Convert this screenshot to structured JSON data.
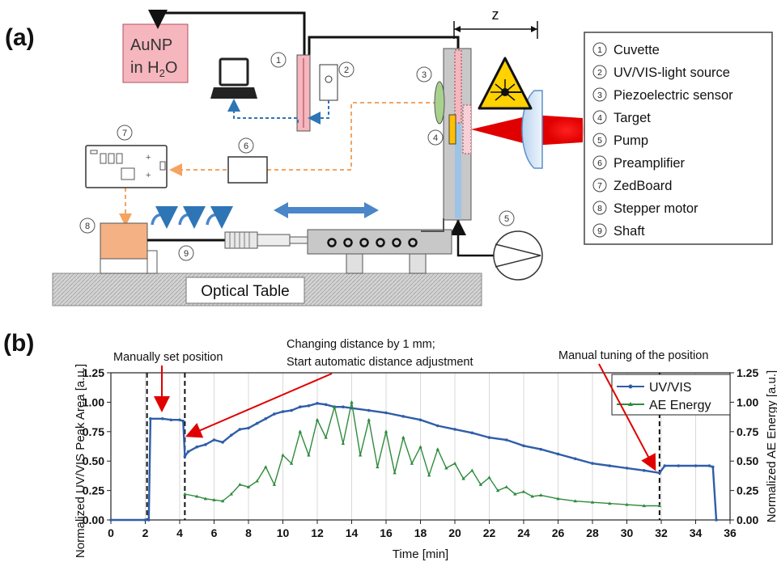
{
  "panel_a": {
    "label": "(a)",
    "reservoir": {
      "line1": "AuNP",
      "line2_prefix": "in H",
      "line2_sub": "2",
      "line2_suffix": "O"
    },
    "dimension_label": "z",
    "table_label": "Optical Table",
    "callouts": [
      "1",
      "2",
      "3",
      "4",
      "5",
      "6",
      "7",
      "8",
      "9"
    ],
    "legend": [
      {
        "num": "1",
        "text": "Cuvette"
      },
      {
        "num": "2",
        "text": "UV/VIS-light source"
      },
      {
        "num": "3",
        "text": "Piezoelectric sensor"
      },
      {
        "num": "4",
        "text": "Target"
      },
      {
        "num": "5",
        "text": "Pump"
      },
      {
        "num": "6",
        "text": "Preamplifier"
      },
      {
        "num": "7",
        "text": "ZedBoard"
      },
      {
        "num": "8",
        "text": "Stepper motor"
      },
      {
        "num": "9",
        "text": "Shaft"
      }
    ],
    "colors": {
      "reservoir": "#f6b6be",
      "motor": "#f4b183",
      "table": "#bfbfbf",
      "arrow_blue": "#4a86c8",
      "dashed_blue": "#2e75b6",
      "dashed_orange": "#f4a460",
      "laser": "#e00000",
      "warning": "#ffd200"
    }
  },
  "panel_b": {
    "label": "(b)",
    "annotations": {
      "manual_set": "Manually set position",
      "changing_1": "Changing distance by 1 mm;",
      "changing_2": "Start automatic distance adjustment",
      "manual_tuning": "Manual tuning of the position"
    }
  },
  "chart_data": {
    "type": "line",
    "xlabel": "Time [min]",
    "ylabel_left": "Normalized UV/VIS Peak Area [a.u.]",
    "ylabel_right": "Normalized AE Energy [a.u.]",
    "xlim": [
      0,
      36
    ],
    "ylim": [
      0,
      1.25
    ],
    "xticks": [
      0,
      2,
      4,
      6,
      8,
      10,
      12,
      14,
      16,
      18,
      20,
      22,
      24,
      26,
      28,
      30,
      32,
      34,
      36
    ],
    "yticks": [
      "0.00",
      "0.25",
      "0.50",
      "0.75",
      "1.00",
      "1.25"
    ],
    "grid": "vertical",
    "legend_position": "top-right",
    "markers_x": [
      2.1,
      4.3,
      31.9
    ],
    "series": [
      {
        "name": "UV/VIS",
        "color": "#2f5ea8",
        "x": [
          0,
          2.0,
          2.2,
          2.3,
          3.0,
          3.5,
          4.0,
          4.2,
          4.3,
          4.5,
          5.0,
          5.5,
          6.0,
          6.5,
          7.0,
          7.5,
          8.0,
          8.5,
          9.0,
          9.5,
          10.0,
          10.5,
          11.0,
          11.5,
          12.0,
          12.5,
          13.0,
          13.5,
          14.0,
          15.0,
          16.0,
          17.0,
          18.0,
          19.0,
          20.0,
          21.0,
          22.0,
          23.0,
          24.0,
          25.0,
          26.0,
          27.0,
          28.0,
          29.0,
          30.0,
          31.0,
          31.9,
          32.2,
          33.0,
          34.0,
          34.8,
          35.0,
          35.2
        ],
        "y": [
          0.0,
          0.0,
          0.0,
          0.86,
          0.86,
          0.85,
          0.85,
          0.84,
          0.54,
          0.58,
          0.62,
          0.64,
          0.68,
          0.66,
          0.72,
          0.77,
          0.78,
          0.82,
          0.86,
          0.9,
          0.92,
          0.93,
          0.96,
          0.97,
          0.99,
          0.98,
          0.96,
          0.96,
          0.95,
          0.93,
          0.91,
          0.88,
          0.85,
          0.8,
          0.77,
          0.74,
          0.7,
          0.68,
          0.63,
          0.6,
          0.56,
          0.52,
          0.48,
          0.46,
          0.44,
          0.42,
          0.4,
          0.46,
          0.46,
          0.46,
          0.46,
          0.45,
          0.0
        ]
      },
      {
        "name": "AE Energy",
        "color": "#2e8b3c",
        "x": [
          4.3,
          5.0,
          5.5,
          6.0,
          6.5,
          7.0,
          7.5,
          8.0,
          8.5,
          9.0,
          9.5,
          10.0,
          10.5,
          11.0,
          11.5,
          12.0,
          12.5,
          13.0,
          13.5,
          14.0,
          14.5,
          15.0,
          15.5,
          16.0,
          16.5,
          17.0,
          17.5,
          18.0,
          18.5,
          19.0,
          19.5,
          20.0,
          20.5,
          21.0,
          21.5,
          22.0,
          22.5,
          23.0,
          23.5,
          24.0,
          24.5,
          25.0,
          26.0,
          27.0,
          28.0,
          29.0,
          30.0,
          31.0,
          31.9
        ],
        "y": [
          0.22,
          0.2,
          0.18,
          0.17,
          0.16,
          0.22,
          0.3,
          0.28,
          0.33,
          0.45,
          0.3,
          0.55,
          0.48,
          0.75,
          0.55,
          0.85,
          0.7,
          0.96,
          0.65,
          1.0,
          0.55,
          0.85,
          0.45,
          0.75,
          0.4,
          0.7,
          0.48,
          0.62,
          0.38,
          0.6,
          0.44,
          0.48,
          0.35,
          0.42,
          0.3,
          0.36,
          0.25,
          0.28,
          0.22,
          0.24,
          0.2,
          0.21,
          0.18,
          0.16,
          0.15,
          0.14,
          0.13,
          0.12,
          0.12
        ]
      }
    ]
  }
}
